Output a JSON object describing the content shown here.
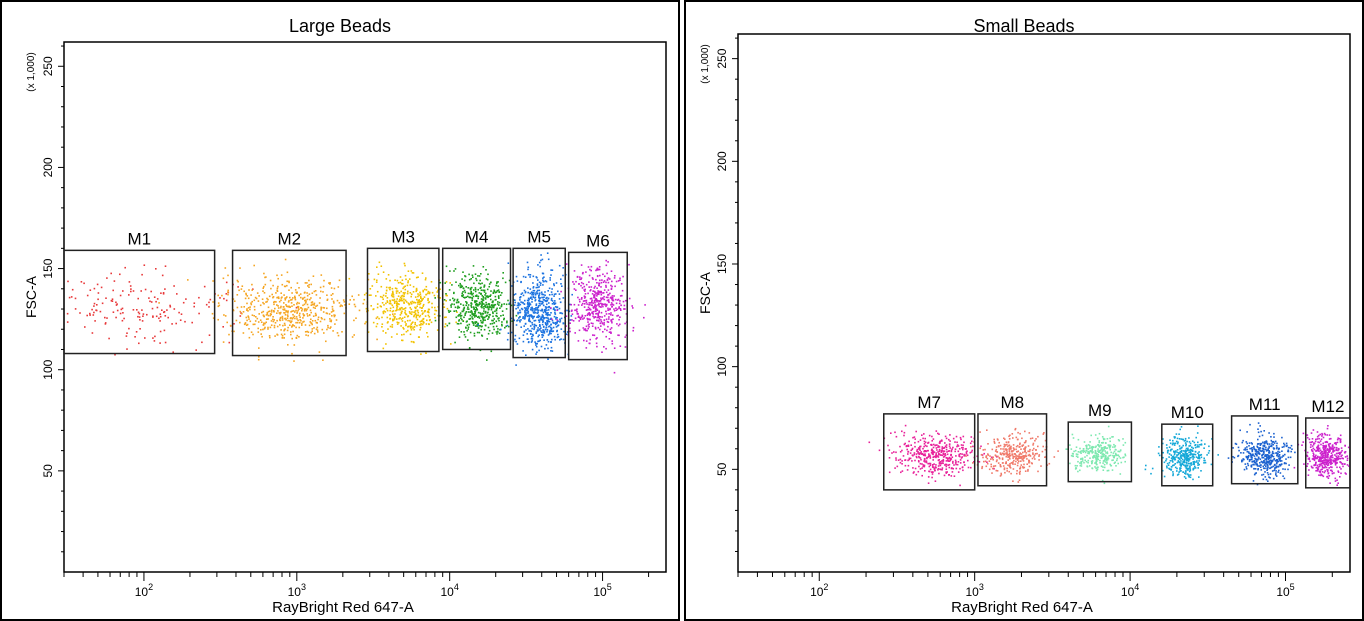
{
  "chart_data": [
    {
      "type": "scatter",
      "title": "Large Beads",
      "xlabel": "RayBright Red 647-A",
      "ylabel": "FSC-A",
      "y_unit": "(x 1,000)",
      "x_scale": "log",
      "xlim": [
        30,
        260000
      ],
      "ylim": [
        0,
        262
      ],
      "x_ticks": [
        100,
        1000,
        10000,
        100000
      ],
      "x_tick_labels": [
        [
          "10",
          "2"
        ],
        [
          "10",
          "3"
        ],
        [
          "10",
          "4"
        ],
        [
          "10",
          "5"
        ]
      ],
      "y_ticks": [
        50,
        100,
        150,
        200,
        250
      ],
      "y_tick_labels": [
        "50",
        "100",
        "150",
        "200",
        "250"
      ],
      "gates": [
        {
          "name": "M1",
          "x0": 30,
          "x1": 290,
          "y0": 108,
          "y1": 159
        },
        {
          "name": "M2",
          "x0": 380,
          "x1": 2100,
          "y0": 107,
          "y1": 159
        },
        {
          "name": "M3",
          "x0": 2900,
          "x1": 8500,
          "y0": 109,
          "y1": 160
        },
        {
          "name": "M4",
          "x0": 9000,
          "x1": 25000,
          "y0": 110,
          "y1": 160
        },
        {
          "name": "M5",
          "x0": 26000,
          "x1": 57000,
          "y0": 106,
          "y1": 160
        },
        {
          "name": "M6",
          "x0": 60000,
          "x1": 145000,
          "y0": 105,
          "y1": 158
        }
      ],
      "series": [
        {
          "color": "#e8393a",
          "x_center": 90,
          "x_spread_dec": 0.32,
          "y_center": 132,
          "y_spread": 9,
          "count": 190
        },
        {
          "color": "#f5a623",
          "x_center": 880,
          "x_spread_dec": 0.22,
          "y_center": 130,
          "y_spread": 8,
          "count": 560
        },
        {
          "color": "#f2c200",
          "x_center": 5200,
          "x_spread_dec": 0.12,
          "y_center": 131,
          "y_spread": 8,
          "count": 430
        },
        {
          "color": "#1e9e1e",
          "x_center": 15500,
          "x_spread_dec": 0.1,
          "y_center": 131,
          "y_spread": 8,
          "count": 480
        },
        {
          "color": "#1c73e0",
          "x_center": 38500,
          "x_spread_dec": 0.09,
          "y_center": 129,
          "y_spread": 9,
          "count": 560
        },
        {
          "color": "#cc22cc",
          "x_center": 92000,
          "x_spread_dec": 0.1,
          "y_center": 131,
          "y_spread": 9,
          "count": 460
        }
      ]
    },
    {
      "type": "scatter",
      "title": "Small Beads",
      "xlabel": "RayBright Red 647-A",
      "ylabel": "FSC-A",
      "y_unit": "(x 1,000)",
      "x_scale": "log",
      "xlim": [
        30,
        260000
      ],
      "ylim": [
        0,
        262
      ],
      "x_ticks": [
        100,
        1000,
        10000,
        100000
      ],
      "x_tick_labels": [
        [
          "10",
          "2"
        ],
        [
          "10",
          "3"
        ],
        [
          "10",
          "4"
        ],
        [
          "10",
          "5"
        ]
      ],
      "y_ticks": [
        50,
        100,
        150,
        200,
        250
      ],
      "y_tick_labels": [
        "50",
        "100",
        "150",
        "200",
        "250"
      ],
      "gates": [
        {
          "name": "M7",
          "x0": 260,
          "x1": 1000,
          "y0": 40,
          "y1": 77
        },
        {
          "name": "M8",
          "x0": 1050,
          "x1": 2900,
          "y0": 42,
          "y1": 77
        },
        {
          "name": "M9",
          "x0": 4000,
          "x1": 10200,
          "y0": 44,
          "y1": 73
        },
        {
          "name": "M10",
          "x0": 16000,
          "x1": 34000,
          "y0": 42,
          "y1": 72
        },
        {
          "name": "M11",
          "x0": 45000,
          "x1": 120000,
          "y0": 43,
          "y1": 76
        },
        {
          "name": "M12",
          "x0": 135000,
          "x1": 260000,
          "y0": 41,
          "y1": 75
        }
      ],
      "series": [
        {
          "color": "#e8229a",
          "x_center": 560,
          "x_spread_dec": 0.13,
          "y_center": 57,
          "y_spread": 5,
          "count": 430
        },
        {
          "color": "#f07a6a",
          "x_center": 1750,
          "x_spread_dec": 0.1,
          "y_center": 57,
          "y_spread": 5,
          "count": 330
        },
        {
          "color": "#7ee8b0",
          "x_center": 6200,
          "x_spread_dec": 0.08,
          "y_center": 57,
          "y_spread": 4,
          "count": 300
        },
        {
          "color": "#14a8d8",
          "x_center": 22500,
          "x_spread_dec": 0.07,
          "y_center": 56,
          "y_spread": 5,
          "count": 350
        },
        {
          "color": "#1c62d0",
          "x_center": 74000,
          "x_spread_dec": 0.08,
          "y_center": 56,
          "y_spread": 5,
          "count": 420
        },
        {
          "color": "#cc22cc",
          "x_center": 185000,
          "x_spread_dec": 0.07,
          "y_center": 56,
          "y_spread": 5,
          "count": 430
        }
      ]
    }
  ]
}
